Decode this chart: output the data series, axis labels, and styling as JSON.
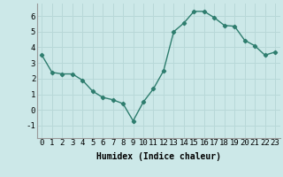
{
  "x": [
    0,
    1,
    2,
    3,
    4,
    5,
    6,
    7,
    8,
    9,
    10,
    11,
    12,
    13,
    14,
    15,
    16,
    17,
    18,
    19,
    20,
    21,
    22,
    23
  ],
  "y": [
    3.5,
    2.4,
    2.3,
    2.3,
    1.9,
    1.2,
    0.8,
    0.65,
    0.4,
    -0.7,
    0.5,
    1.35,
    2.5,
    5.0,
    5.55,
    6.3,
    6.3,
    5.9,
    5.4,
    5.35,
    4.45,
    4.1,
    3.5,
    3.7
  ],
  "line_color": "#2e7d6e",
  "marker": "D",
  "marker_size": 2.2,
  "bg_color": "#cce8e8",
  "grid_color": "#b8d8d8",
  "xlabel": "Humidex (Indice chaleur)",
  "xlabel_fontsize": 7,
  "tick_fontsize": 6.5,
  "xlim": [
    -0.5,
    23.5
  ],
  "ylim": [
    -1.8,
    6.8
  ],
  "yticks": [
    -1,
    0,
    1,
    2,
    3,
    4,
    5,
    6
  ],
  "xticks": [
    0,
    1,
    2,
    3,
    4,
    5,
    6,
    7,
    8,
    9,
    10,
    11,
    12,
    13,
    14,
    15,
    16,
    17,
    18,
    19,
    20,
    21,
    22,
    23
  ]
}
